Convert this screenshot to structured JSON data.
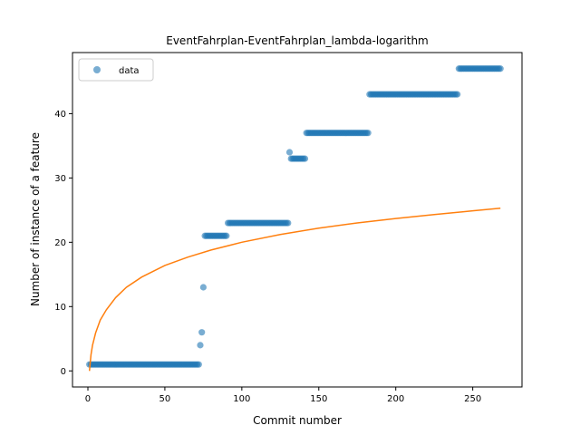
{
  "chart_data": {
    "type": "scatter",
    "title": "EventFahrplan-EventFahrplan_lambda-logarithm",
    "xlabel": "Commit number",
    "ylabel": "Number of instance of a feature",
    "xlim": [
      -10,
      282
    ],
    "ylim": [
      -2.5,
      49.5
    ],
    "xticks": [
      0,
      50,
      100,
      150,
      200,
      250
    ],
    "yticks": [
      0,
      10,
      20,
      30,
      40
    ],
    "grid": false,
    "legend": {
      "placement": "top-left",
      "entries": [
        "data"
      ]
    },
    "colors": {
      "data": "#1f77b4",
      "fit": "#ff7f0e"
    },
    "series": [
      {
        "name": "data",
        "kind": "scatter",
        "segments": [
          {
            "x_start": 1,
            "x_end": 72,
            "y": 1
          },
          {
            "x_start": 76,
            "x_end": 90,
            "y": 21
          },
          {
            "x_start": 91,
            "x_end": 130,
            "y": 23
          },
          {
            "x_start": 132,
            "x_end": 141,
            "y": 33
          },
          {
            "x_start": 142,
            "x_end": 182,
            "y": 37
          },
          {
            "x_start": 183,
            "x_end": 240,
            "y": 43
          },
          {
            "x_start": 241,
            "x_end": 268,
            "y": 47
          }
        ],
        "points": [
          {
            "x": 73,
            "y": 4
          },
          {
            "x": 74,
            "y": 6
          },
          {
            "x": 75,
            "y": 13
          },
          {
            "x": 131,
            "y": 34
          }
        ]
      },
      {
        "kind": "line",
        "model": "logarithmic",
        "x": [
          1,
          2,
          3,
          5,
          8,
          12,
          18,
          25,
          35,
          50,
          65,
          80,
          100,
          125,
          150,
          175,
          200,
          225,
          250,
          268
        ],
        "y": [
          0,
          2.5,
          4.0,
          5.9,
          7.9,
          9.5,
          11.4,
          13.0,
          14.6,
          16.4,
          17.7,
          18.8,
          20.0,
          21.2,
          22.2,
          23.0,
          23.7,
          24.3,
          24.9,
          25.3
        ]
      }
    ]
  }
}
